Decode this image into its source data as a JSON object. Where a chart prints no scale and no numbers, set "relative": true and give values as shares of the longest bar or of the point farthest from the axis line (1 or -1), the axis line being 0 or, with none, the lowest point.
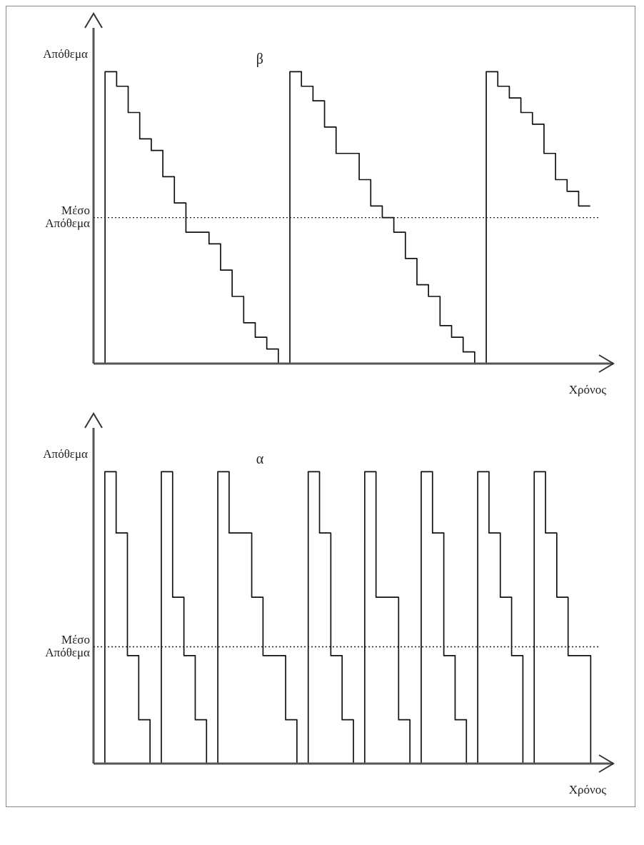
{
  "chart_data": [
    {
      "type": "step",
      "title": "β",
      "xlabel": "Χρόνος",
      "ylabel": "Απόθεμα",
      "relative": true,
      "categories": [
        null,
        null,
        null,
        null,
        null,
        null,
        null,
        null,
        null,
        null,
        null,
        null,
        null,
        null,
        null,
        null,
        null,
        null,
        null,
        null,
        null,
        null,
        null,
        null,
        null,
        null,
        null,
        null,
        null,
        null,
        null,
        null,
        null,
        null,
        null,
        null,
        null,
        null,
        null,
        null,
        null,
        null,
        null,
        null,
        null,
        null
      ],
      "series": [
        {
          "color": "#111111",
          "values": [
            0,
            1,
            0.95,
            0.86,
            0.77,
            0.73,
            0.64,
            0.55,
            0.45,
            0.45,
            0.41,
            0.32,
            0.23,
            0.14,
            0.09,
            0.05,
            0,
            1,
            0.95,
            0.9,
            0.81,
            0.72,
            0.72,
            0.63,
            0.54,
            0.5,
            0.45,
            0.36,
            0.27,
            0.23,
            0.13,
            0.09,
            0.04,
            0,
            1,
            0.95,
            0.91,
            0.86,
            0.82,
            0.72,
            0.63,
            0.59,
            0.54,
            0.54,
            null,
            null
          ]
        }
      ],
      "ref_lines": [
        {
          "axis": "y",
          "value": 0.5,
          "label": "Μέσο Απόθεμα",
          "color": "#222222",
          "line_style": "dotted"
        }
      ]
    },
    {
      "type": "step",
      "title": "α",
      "xlabel": "Χρόνος",
      "ylabel": "Απόθεμα",
      "relative": true,
      "categories": [
        null,
        null,
        null,
        null,
        null,
        null,
        null,
        null,
        null,
        null,
        null,
        null,
        null,
        null,
        null,
        null,
        null,
        null,
        null,
        null,
        null,
        null,
        null,
        null,
        null,
        null,
        null,
        null,
        null,
        null,
        null,
        null,
        null,
        null,
        null,
        null,
        null,
        null,
        null,
        null,
        null,
        null,
        null,
        null,
        null,
        null,
        null
      ],
      "series": [
        {
          "color": "#111111",
          "values": [
            0,
            1,
            0.79,
            0.37,
            0.15,
            0,
            1,
            0.57,
            0.37,
            0.15,
            0,
            1,
            0.79,
            0.79,
            0.57,
            0.37,
            0.37,
            0.15,
            0,
            1,
            0.79,
            0.37,
            0.15,
            0,
            1,
            0.57,
            0.57,
            0.15,
            0,
            1,
            0.79,
            0.37,
            0.15,
            0,
            1,
            0.79,
            0.57,
            0.37,
            0,
            1,
            0.79,
            0.57,
            0.37,
            0.37,
            0,
            null,
            null
          ]
        }
      ],
      "ref_lines": [
        {
          "axis": "y",
          "value": 0.4,
          "label": "Μέσο Απόθεμα",
          "color": "#222222",
          "line_style": "dotted"
        }
      ]
    }
  ]
}
